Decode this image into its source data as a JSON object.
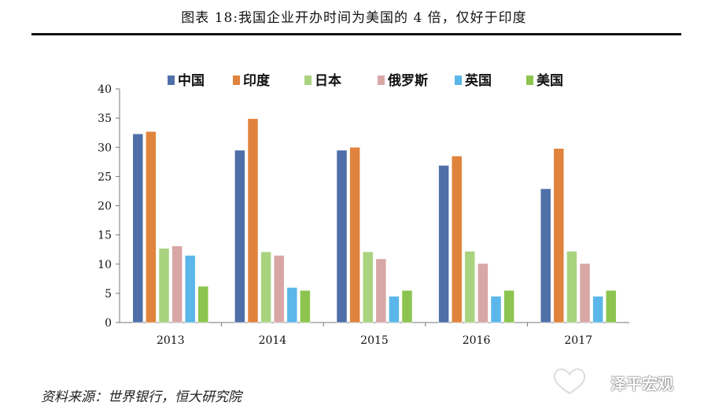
{
  "title": "图表 18:我国企业开办时间为美国的 4 倍，仅好于印度",
  "source": "资料来源：世界银行，恒大研究院",
  "watermark": "泽平宏观",
  "chart_data": {
    "type": "bar",
    "categories": [
      "2013",
      "2014",
      "2015",
      "2016",
      "2017"
    ],
    "series": [
      {
        "name": "中国",
        "color": "#4f6fa8",
        "values": [
          32.3,
          29.5,
          29.5,
          26.9,
          22.9
        ]
      },
      {
        "name": "印度",
        "color": "#e0833c",
        "values": [
          32.7,
          34.9,
          30.0,
          28.5,
          29.8
        ]
      },
      {
        "name": "日本",
        "color": "#a9d37f",
        "values": [
          12.7,
          12.1,
          12.1,
          12.2,
          12.2
        ]
      },
      {
        "name": "俄罗斯",
        "color": "#d9a6a6",
        "values": [
          13.1,
          11.5,
          10.9,
          10.1,
          10.1
        ]
      },
      {
        "name": "英国",
        "color": "#5bb6ea",
        "values": [
          11.5,
          6.0,
          4.5,
          4.5,
          4.5
        ]
      },
      {
        "name": "美国",
        "color": "#8cc44f",
        "values": [
          6.2,
          5.5,
          5.5,
          5.5,
          5.5
        ]
      }
    ],
    "ylim": [
      0,
      40
    ],
    "yticks": [
      0,
      5,
      10,
      15,
      20,
      25,
      30,
      35,
      40
    ],
    "legend_position": "top",
    "grid": false
  }
}
